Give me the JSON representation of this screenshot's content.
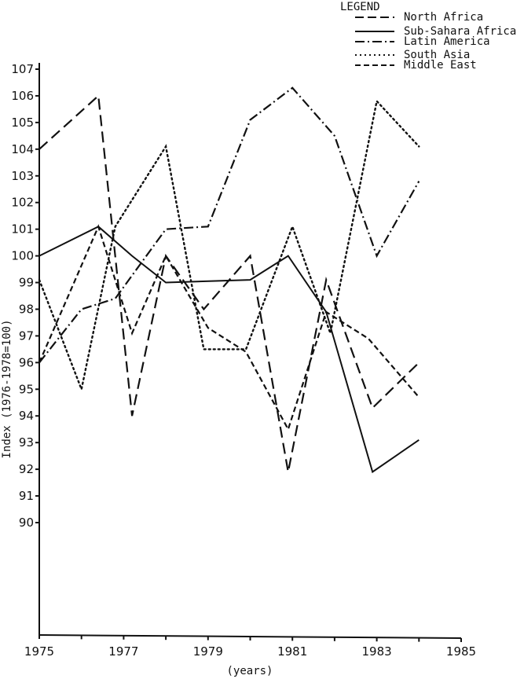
{
  "chart_data": {
    "type": "line",
    "title": "",
    "xlabel": "(years)",
    "ylabel": "Index (1976-1978=100)",
    "xlim": [
      1975,
      1985
    ],
    "ylim": [
      86,
      107
    ],
    "x_ticks": [
      1975,
      1977,
      1979,
      1981,
      1983,
      1985
    ],
    "x_minor_ticks": [
      1976,
      1978,
      1980,
      1982,
      1984
    ],
    "y_ticks": [
      90,
      91,
      92,
      93,
      94,
      95,
      96,
      97,
      98,
      99,
      100,
      101,
      102,
      103,
      104,
      105,
      106,
      107
    ],
    "grid": false,
    "legend_position": "top-right",
    "legend_title": "LEGEND",
    "series": [
      {
        "name": "North Africa",
        "style": "long-dash",
        "points": [
          [
            1975.0,
            104.0
          ],
          [
            1976.4,
            106.0
          ],
          [
            1977.2,
            94.0
          ],
          [
            1978.0,
            100.0
          ],
          [
            1978.9,
            98.0
          ],
          [
            1980.0,
            100.0
          ],
          [
            1980.9,
            91.9
          ],
          [
            1981.8,
            99.1
          ],
          [
            1982.9,
            94.3
          ],
          [
            1984.0,
            96.0
          ]
        ]
      },
      {
        "name": "Sub-Sahara Africa",
        "style": "solid",
        "points": [
          [
            1975.0,
            100.0
          ],
          [
            1976.4,
            101.1
          ],
          [
            1977.2,
            100.0
          ],
          [
            1978.0,
            99.0
          ],
          [
            1980.0,
            99.1
          ],
          [
            1980.9,
            100.0
          ],
          [
            1981.8,
            97.9
          ],
          [
            1982.9,
            91.9
          ],
          [
            1984.0,
            93.1
          ]
        ]
      },
      {
        "name": "Latin America",
        "style": "dash-dot",
        "points": [
          [
            1975.0,
            96.0
          ],
          [
            1976.0,
            98.0
          ],
          [
            1976.8,
            98.4
          ],
          [
            1978.0,
            101.0
          ],
          [
            1979.0,
            101.1
          ],
          [
            1980.0,
            105.1
          ],
          [
            1981.0,
            106.3
          ],
          [
            1982.0,
            104.5
          ],
          [
            1983.0,
            100.0
          ],
          [
            1984.0,
            102.8
          ]
        ]
      },
      {
        "name": "South Asia",
        "style": "dotted",
        "points": [
          [
            1975.0,
            99.1
          ],
          [
            1976.0,
            95.0
          ],
          [
            1976.8,
            101.1
          ],
          [
            1978.0,
            104.1
          ],
          [
            1978.9,
            96.5
          ],
          [
            1979.9,
            96.5
          ],
          [
            1981.0,
            101.1
          ],
          [
            1981.9,
            97.1
          ],
          [
            1983.0,
            105.8
          ],
          [
            1984.0,
            104.1
          ]
        ]
      },
      {
        "name": "Middle East",
        "style": "short-dash",
        "points": [
          [
            1975.0,
            96.0
          ],
          [
            1976.4,
            101.1
          ],
          [
            1977.2,
            97.1
          ],
          [
            1978.0,
            100.0
          ],
          [
            1979.0,
            97.3
          ],
          [
            1979.9,
            96.4
          ],
          [
            1980.9,
            93.5
          ],
          [
            1981.8,
            97.9
          ],
          [
            1982.8,
            96.9
          ],
          [
            1984.0,
            94.7
          ]
        ]
      }
    ]
  },
  "legend": {
    "title": "LEGEND",
    "items": [
      {
        "label": "North Africa",
        "style": "long-dash"
      },
      {
        "label": "Sub-Sahara Africa",
        "style": "solid"
      },
      {
        "label": "Latin America",
        "style": "dash-dot"
      },
      {
        "label": "South Asia",
        "style": "dotted"
      },
      {
        "label": "Middle East",
        "style": "short-dash"
      }
    ]
  },
  "axes": {
    "x_title": "(years)",
    "y_title": "Index (1976-1978=100)"
  }
}
